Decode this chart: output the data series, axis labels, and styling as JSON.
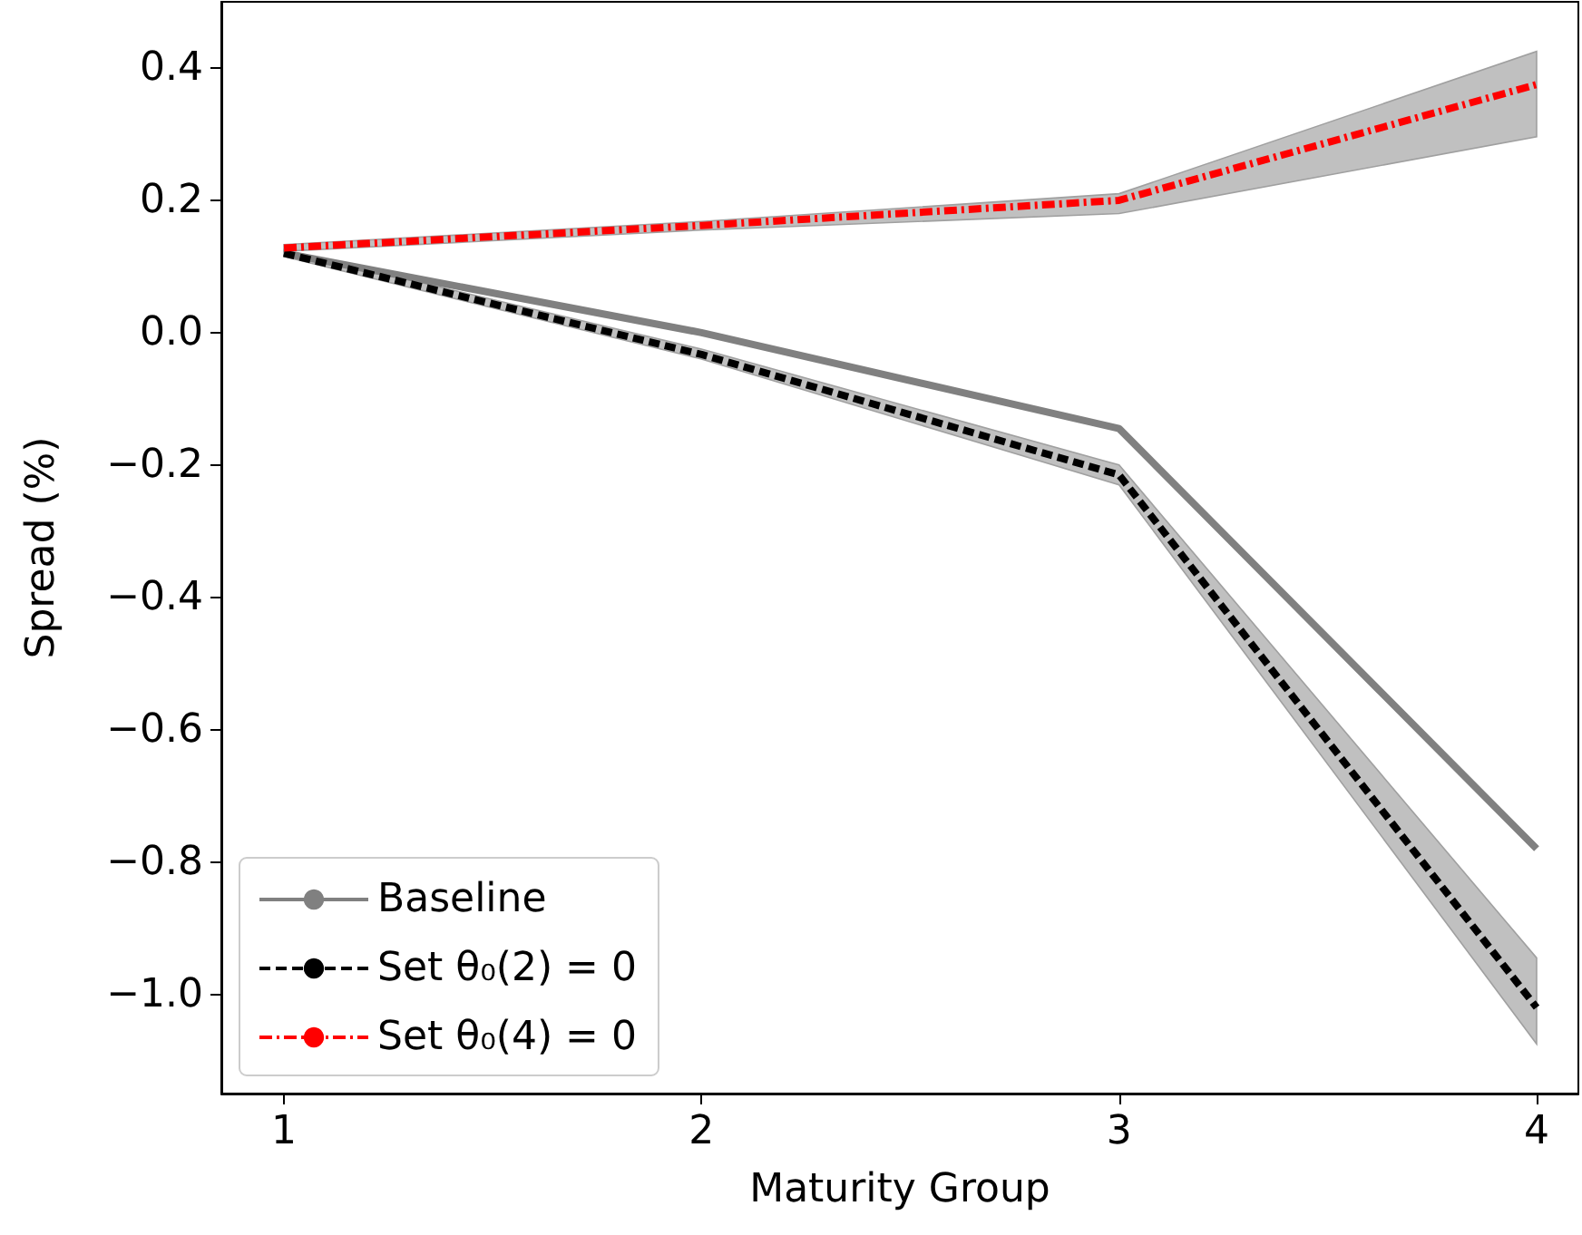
{
  "chart_data": {
    "type": "line",
    "xlabel": "Maturity Group",
    "ylabel": "Spread (%)",
    "x": [
      1,
      2,
      3,
      4
    ],
    "xlim": [
      0.85,
      4.1
    ],
    "xticks": [
      1,
      2,
      3,
      4
    ],
    "ylim": [
      -1.15,
      0.5
    ],
    "yticks": [
      {
        "value": -1.0,
        "label": "−1.0"
      },
      {
        "value": -0.8,
        "label": "−0.8"
      },
      {
        "value": -0.6,
        "label": "−0.6"
      },
      {
        "value": -0.4,
        "label": "−0.4"
      },
      {
        "value": -0.2,
        "label": "−0.2"
      },
      {
        "value": 0.0,
        "label": "0.0"
      },
      0.2,
      0.4
    ],
    "grid": false,
    "legend": "bottom left",
    "marker": "none",
    "series": [
      {
        "name": "Baseline",
        "color": "#808080",
        "line_style": "solid",
        "values": [
          0.12,
          0.0,
          -0.145,
          -0.78
        ]
      },
      {
        "name": "Set θ₀(2) = 0",
        "color": "#000000",
        "line_style": "dashed",
        "values": [
          0.12,
          -0.033,
          -0.215,
          -1.02
        ],
        "lower": [
          0.115,
          -0.04,
          -0.23,
          -1.075
        ],
        "upper": [
          0.125,
          -0.025,
          -0.2,
          -0.945
        ]
      },
      {
        "name": "Set θ₀(4) = 0",
        "color": "#ff0000",
        "line_style": "dashdot",
        "values": [
          0.128,
          0.162,
          0.2,
          0.375
        ],
        "lower": [
          0.123,
          0.155,
          0.18,
          0.296
        ],
        "upper": [
          0.133,
          0.168,
          0.21,
          0.425
        ]
      }
    ]
  }
}
